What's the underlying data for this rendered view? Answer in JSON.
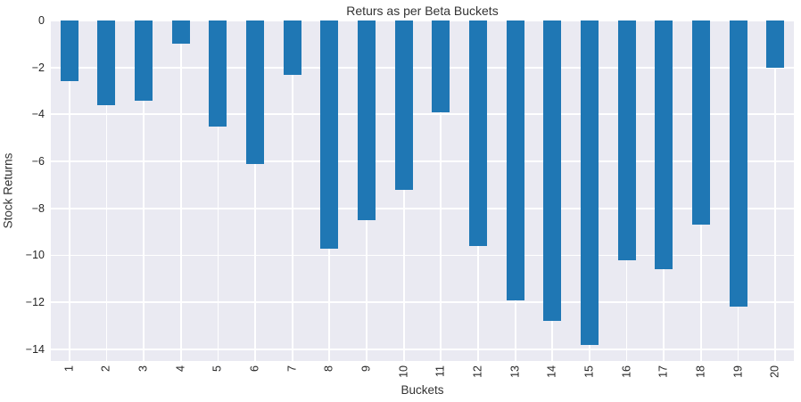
{
  "chart_data": {
    "type": "bar",
    "title": "Returs as per Beta Buckets",
    "xlabel": "Buckets",
    "ylabel": "Stock Returns",
    "categories": [
      "1",
      "2",
      "3",
      "4",
      "5",
      "6",
      "7",
      "8",
      "9",
      "10",
      "11",
      "12",
      "13",
      "14",
      "15",
      "16",
      "17",
      "18",
      "19",
      "20"
    ],
    "values": [
      -2.6,
      -3.6,
      -3.4,
      -1.0,
      -4.5,
      -6.1,
      -2.3,
      -9.7,
      -8.5,
      -7.2,
      -3.9,
      -9.6,
      -11.9,
      -12.8,
      -13.8,
      -10.2,
      -10.6,
      -8.7,
      -12.2,
      -2.0
    ],
    "ylim": [
      -14.5,
      0
    ],
    "yticks": [
      {
        "value": 0,
        "label": "0"
      },
      {
        "value": -2,
        "label": "−2"
      },
      {
        "value": -4,
        "label": "−4"
      },
      {
        "value": -6,
        "label": "−6"
      },
      {
        "value": -8,
        "label": "−8"
      },
      {
        "value": -10,
        "label": "−10"
      },
      {
        "value": -12,
        "label": "−12"
      },
      {
        "value": -14,
        "label": "−14"
      }
    ],
    "grid": "both",
    "legend": "none",
    "colors": {
      "bar": "#1f77b4",
      "plot_background": "#eaeaf2",
      "gridline": "#ffffff",
      "text": "#262626"
    }
  }
}
